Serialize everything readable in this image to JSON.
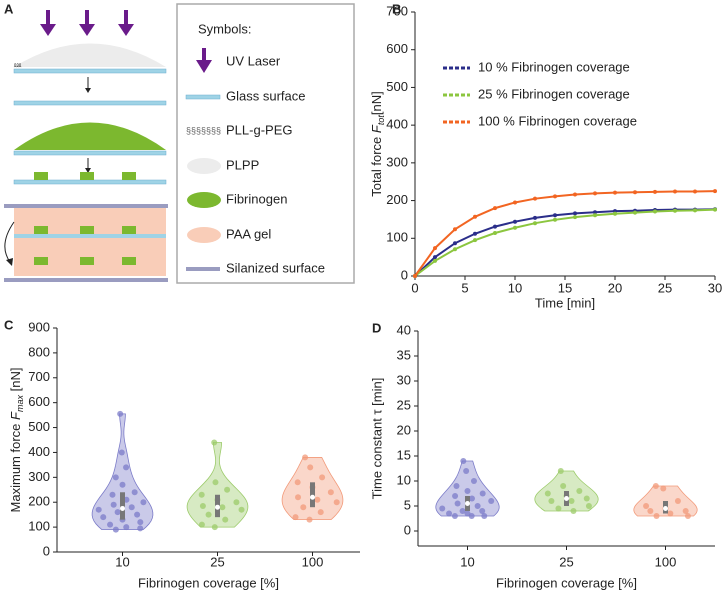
{
  "diagram": {
    "panel_label": "A",
    "legend_title": "Symbols:",
    "items": [
      "UV Laser",
      "Glass surface",
      "PLL-g-PEG",
      "PLPP",
      "Fibrinogen",
      "PAA gel",
      "Silanized surface"
    ]
  },
  "chart_data": [
    {
      "type": "line",
      "panel_label": "B",
      "xlabel": "Time [min]",
      "ylabel": {
        "text": "Total force ",
        "symbol": "F",
        "subscript": "tot",
        "unit": "[nN]"
      },
      "x": [
        0,
        2,
        4,
        6,
        8,
        10,
        12,
        14,
        16,
        18,
        20,
        22,
        24,
        26,
        28,
        30
      ],
      "series": [
        {
          "name": "10 % Fibrinogen coverage",
          "color": "#2b2e8a",
          "values": [
            0,
            50,
            87,
            112,
            131,
            144,
            154,
            161,
            166,
            169,
            172,
            173,
            175,
            176,
            176,
            177
          ]
        },
        {
          "name": "25 % Fibrinogen coverage",
          "color": "#8cc63f",
          "values": [
            0,
            40,
            71,
            95,
            114,
            128,
            140,
            149,
            156,
            161,
            165,
            168,
            171,
            173,
            174,
            176
          ]
        },
        {
          "name": "100 % Fibrinogen coverage",
          "color": "#f26522",
          "values": [
            0,
            74,
            124,
            157,
            180,
            195,
            205,
            211,
            216,
            219,
            221,
            222,
            223,
            224,
            224,
            225
          ]
        }
      ],
      "xlim": [
        0,
        30
      ],
      "xticks": [
        0,
        5,
        10,
        15,
        20,
        25,
        30
      ],
      "ylim": [
        0,
        700
      ],
      "yticks": [
        0,
        100,
        200,
        300,
        400,
        500,
        600,
        700
      ]
    },
    {
      "type": "violin",
      "panel_label": "C",
      "xlabel": "Fibrinogen coverage [%]",
      "ylabel": {
        "text": "Maximum force ",
        "symbol": "F",
        "subscript": "max",
        "unit": " [nN]"
      },
      "categories": [
        "10",
        "25",
        "100"
      ],
      "groups": [
        {
          "color": "#7b7bc8",
          "values": [
            555,
            400,
            340,
            300,
            270,
            240,
            230,
            210,
            200,
            190,
            180,
            170,
            160,
            150,
            140,
            130,
            120,
            110,
            100,
            95,
            90
          ],
          "median": 175,
          "q1": 130,
          "q3": 240
        },
        {
          "color": "#9ccb6a",
          "values": [
            440,
            280,
            250,
            230,
            210,
            200,
            185,
            180,
            170,
            150,
            130,
            110,
            100
          ],
          "median": 180,
          "q1": 140,
          "q3": 230
        },
        {
          "color": "#f29a7a",
          "values": [
            380,
            340,
            300,
            280,
            260,
            240,
            220,
            210,
            200,
            180,
            160,
            140,
            130
          ],
          "median": 220,
          "q1": 180,
          "q3": 280
        }
      ],
      "ylim": [
        0,
        900
      ],
      "yticks": [
        0,
        100,
        200,
        300,
        400,
        500,
        600,
        700,
        800,
        900
      ]
    },
    {
      "type": "violin",
      "panel_label": "D",
      "xlabel": "Fibrinogen coverage [%]",
      "ylabel": "Time constant τ [min]",
      "categories": [
        "10",
        "25",
        "100"
      ],
      "groups": [
        {
          "color": "#7b7bc8",
          "values": [
            14,
            12,
            10,
            9,
            8,
            7.5,
            7,
            6.5,
            6,
            5.5,
            5,
            4.5,
            4,
            4,
            3.5,
            3.5,
            3,
            3,
            3
          ],
          "median": 5.5,
          "q1": 4,
          "q3": 7
        },
        {
          "color": "#9ccb6a",
          "values": [
            12,
            9,
            8,
            7.5,
            7,
            6.5,
            6,
            6,
            5,
            4.5,
            4
          ],
          "median": 6.5,
          "q1": 5,
          "q3": 8
        },
        {
          "color": "#f29a7a",
          "values": [
            9,
            8.5,
            6,
            5,
            4.5,
            4,
            4,
            3.5,
            3,
            3
          ],
          "median": 4.5,
          "q1": 3.5,
          "q3": 6
        }
      ],
      "ylim": [
        -3,
        40
      ],
      "yticks": [
        0,
        5,
        10,
        15,
        20,
        25,
        30,
        35,
        40
      ]
    }
  ]
}
